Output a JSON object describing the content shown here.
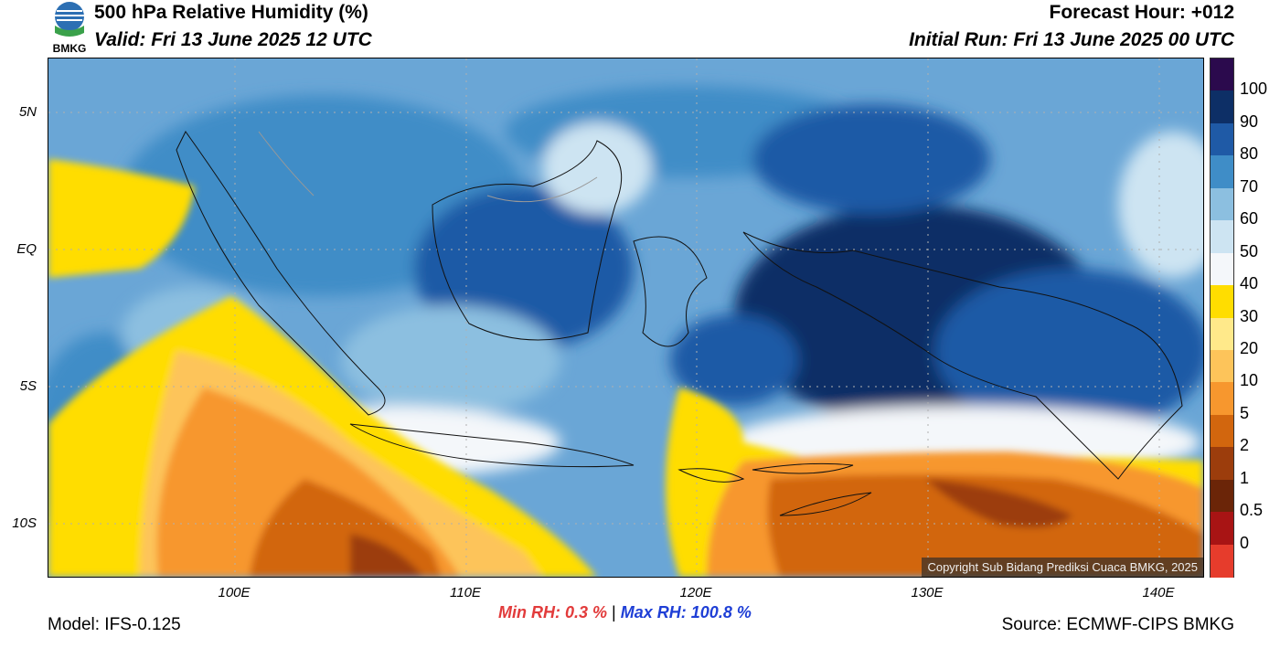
{
  "header": {
    "title": "500 hPa Relative Humidity (%)",
    "valid": "Valid: Fri 13 June 2025 12 UTC",
    "forecast_hour": "Forecast Hour: +012",
    "initial_run": "Initial Run: Fri 13 June 2025 00 UTC",
    "logo_text": "BMKG"
  },
  "axes": {
    "lat_labels": [
      "5N",
      "EQ",
      "5S",
      "10S"
    ],
    "lon_labels": [
      "100E",
      "110E",
      "120E",
      "130E",
      "140E"
    ]
  },
  "colorbar": {
    "labels": [
      "100",
      "90",
      "80",
      "70",
      "60",
      "50",
      "40",
      "30",
      "20",
      "10",
      "5",
      "2",
      "1",
      "0.5",
      "0"
    ],
    "colors": [
      "#2b0a4d",
      "#0d2f66",
      "#1f5aa6",
      "#3f8dc7",
      "#8cbfe0",
      "#cde4f2",
      "#f4f7fa",
      "#ffdd00",
      "#ffe98a",
      "#fdc45a",
      "#f7972e",
      "#d2660e",
      "#9c3d0c",
      "#6b2508",
      "#a81414",
      "#e63c2c"
    ]
  },
  "stats": {
    "min_label": "Min RH:",
    "min_value": "0.3 %",
    "separator": "|",
    "max_label": "Max RH:",
    "max_value": "100.8 %"
  },
  "footer": {
    "model": "Model: IFS-0.125",
    "source": "Source: ECMWF-CIPS BMKG",
    "copyright": "Copyright Sub Bidang Prediksi Cuaca BMKG, 2025"
  }
}
